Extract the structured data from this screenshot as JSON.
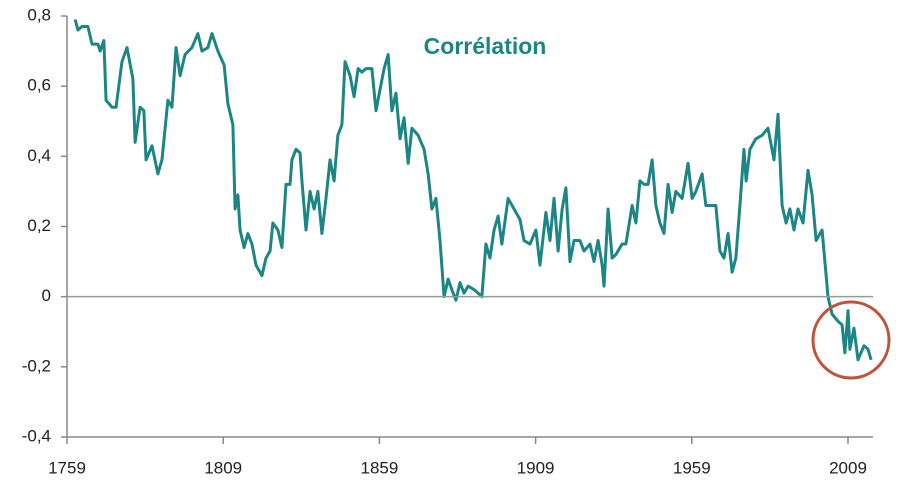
{
  "chart_data": {
    "type": "line",
    "title": "Corrélation",
    "color": "#1b8683",
    "x": [
      1761.6,
      1762.5,
      1763.8,
      1765.7,
      1767.0,
      1768.9,
      1769.6,
      1770.8,
      1771.5,
      1773.4,
      1774.7,
      1776.6,
      1778.2,
      1780.1,
      1780.8,
      1782.4,
      1783.6,
      1784.3,
      1786.2,
      1788.1,
      1789.4,
      1791.3,
      1792.6,
      1793.9,
      1795.2,
      1796.8,
      1799.0,
      1800.9,
      1802.2,
      1804.1,
      1805.4,
      1807.3,
      1809.3,
      1810.5,
      1812.1,
      1812.8,
      1813.7,
      1814.4,
      1815.7,
      1816.9,
      1818.2,
      1819.5,
      1821.4,
      1822.7,
      1824.0,
      1824.9,
      1826.5,
      1827.8,
      1829.1,
      1830.4,
      1831.0,
      1832.3,
      1833.6,
      1834.2,
      1835.5,
      1836.8,
      1838.1,
      1839.3,
      1840.6,
      1841.9,
      1843.2,
      1844.5,
      1845.7,
      1847.0,
      1848.0,
      1849.6,
      1850.9,
      1852.2,
      1853.4,
      1854.7,
      1856.6,
      1857.9,
      1859.2,
      1860.5,
      1861.8,
      1863.0,
      1864.3,
      1865.6,
      1866.9,
      1868.2,
      1869.4,
      1871.4,
      1873.3,
      1874.6,
      1875.8,
      1877.1,
      1878.4,
      1879.7,
      1881.0,
      1882.2,
      1883.5,
      1884.8,
      1886.1,
      1887.4,
      1889.3,
      1890.6,
      1891.8,
      1893.1,
      1894.4,
      1895.7,
      1897.0,
      1898.2,
      1900.2,
      1902.1,
      1904.0,
      1905.3,
      1907.2,
      1909.1,
      1910.4,
      1912.3,
      1913.6,
      1914.9,
      1916.2,
      1917.5,
      1918.7,
      1920.0,
      1921.3,
      1923.2,
      1924.5,
      1926.4,
      1927.7,
      1929.0,
      1930.3,
      1930.9,
      1932.2,
      1933.5,
      1934.7,
      1936.7,
      1937.9,
      1939.9,
      1941.1,
      1942.4,
      1943.7,
      1945.0,
      1946.3,
      1947.5,
      1948.8,
      1950.1,
      1951.4,
      1952.7,
      1953.9,
      1955.9,
      1957.8,
      1959.1,
      1960.3,
      1962.3,
      1963.5,
      1965.5,
      1966.7,
      1968.0,
      1969.3,
      1970.6,
      1971.9,
      1973.1,
      1974.4,
      1975.7,
      1976.4,
      1977.6,
      1979.5,
      1981.5,
      1983.4,
      1985.3,
      1986.6,
      1987.9,
      1989.2,
      1990.4,
      1991.7,
      1993.0,
      1994.6,
      1996.2,
      1997.5,
      1998.8,
      2000.7,
      2002.6,
      2003.9,
      2005.8,
      2007.1,
      2008.0,
      2009.0,
      2009.6,
      2010.9,
      2012.2,
      2014.1,
      2015.4,
      2016.4
    ],
    "values": [
      0.79,
      0.76,
      0.77,
      0.77,
      0.72,
      0.72,
      0.7,
      0.73,
      0.56,
      0.54,
      0.54,
      0.67,
      0.71,
      0.62,
      0.44,
      0.54,
      0.53,
      0.39,
      0.43,
      0.35,
      0.39,
      0.56,
      0.54,
      0.71,
      0.63,
      0.69,
      0.71,
      0.75,
      0.7,
      0.71,
      0.75,
      0.7,
      0.66,
      0.55,
      0.49,
      0.25,
      0.29,
      0.19,
      0.14,
      0.18,
      0.15,
      0.09,
      0.06,
      0.11,
      0.13,
      0.21,
      0.19,
      0.14,
      0.32,
      0.32,
      0.39,
      0.42,
      0.41,
      0.33,
      0.19,
      0.3,
      0.25,
      0.3,
      0.18,
      0.28,
      0.39,
      0.33,
      0.46,
      0.49,
      0.67,
      0.63,
      0.57,
      0.65,
      0.64,
      0.65,
      0.65,
      0.53,
      0.59,
      0.65,
      0.69,
      0.53,
      0.58,
      0.45,
      0.51,
      0.38,
      0.48,
      0.46,
      0.42,
      0.35,
      0.25,
      0.28,
      0.16,
      0.0,
      0.05,
      0.02,
      -0.01,
      0.04,
      0.01,
      0.03,
      0.02,
      0.01,
      0.0,
      0.15,
      0.11,
      0.19,
      0.23,
      0.15,
      0.28,
      0.25,
      0.22,
      0.16,
      0.15,
      0.19,
      0.09,
      0.24,
      0.16,
      0.28,
      0.13,
      0.25,
      0.31,
      0.1,
      0.16,
      0.16,
      0.13,
      0.15,
      0.1,
      0.16,
      0.09,
      0.03,
      0.25,
      0.11,
      0.12,
      0.15,
      0.15,
      0.26,
      0.21,
      0.33,
      0.32,
      0.32,
      0.39,
      0.26,
      0.21,
      0.18,
      0.32,
      0.24,
      0.3,
      0.28,
      0.38,
      0.28,
      0.3,
      0.35,
      0.26,
      0.26,
      0.26,
      0.13,
      0.11,
      0.18,
      0.07,
      0.11,
      0.26,
      0.42,
      0.33,
      0.42,
      0.45,
      0.46,
      0.48,
      0.39,
      0.52,
      0.26,
      0.21,
      0.25,
      0.19,
      0.25,
      0.21,
      0.36,
      0.29,
      0.16,
      0.19,
      0.0,
      -0.05,
      -0.07,
      -0.08,
      -0.16,
      -0.04,
      -0.15,
      -0.09,
      -0.18,
      -0.14,
      -0.15,
      -0.18
    ],
    "xlim": [
      1759,
      2017
    ],
    "xticks": [
      1759,
      1809,
      1859,
      1909,
      1959,
      2009
    ],
    "ylim": [
      -0.4,
      0.8
    ],
    "yticks": [
      {
        "value": -0.4,
        "label": "-0,4"
      },
      {
        "value": -0.2,
        "label": "-0,2"
      },
      0,
      {
        "value": 0.2,
        "label": "0,2"
      },
      {
        "value": 0.4,
        "label": "0,4"
      },
      {
        "value": 0.6,
        "label": "0,6"
      },
      {
        "value": 0.8,
        "label": "0,8"
      }
    ]
  }
}
